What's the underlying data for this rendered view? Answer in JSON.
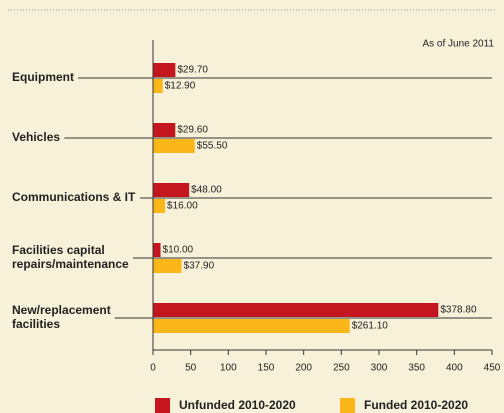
{
  "chart_data": {
    "type": "bar",
    "orientation": "horizontal",
    "annotation": "As of June 2011",
    "categories": [
      "Equipment",
      "Vehicles",
      "Communications & IT",
      "Facilities capital\nrepairs/maintenance",
      "New/replacement\nfacilities"
    ],
    "series": [
      {
        "name": "Unfunded 2010-2020",
        "color": "#c3161f",
        "values": [
          29.7,
          29.6,
          48.0,
          10.0,
          378.8
        ],
        "value_labels": [
          "$29.70",
          "$29.60",
          "$48.00",
          "$10.00",
          "$378.80"
        ]
      },
      {
        "name": "Funded 2010-2020",
        "color": "#fbb619",
        "values": [
          12.9,
          55.5,
          16.0,
          37.9,
          261.1
        ],
        "value_labels": [
          "$12.90",
          "$55.50",
          "$16.00",
          "$37.90",
          "$261.10"
        ]
      }
    ],
    "xlim": [
      0,
      450
    ],
    "xticks": [
      0,
      50,
      100,
      150,
      200,
      250,
      300,
      350,
      400,
      450
    ]
  }
}
